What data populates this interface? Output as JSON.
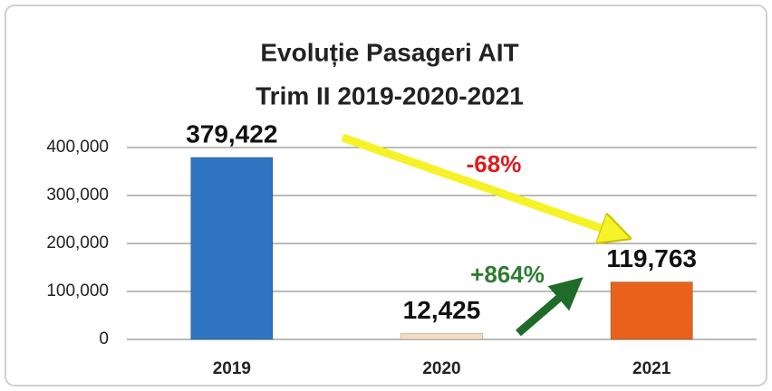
{
  "chart_data": {
    "type": "bar",
    "title": [
      "Evoluție Pasageri AIT",
      "Trim II 2019-2020-2021"
    ],
    "categories": [
      "2019",
      "2020",
      "2021"
    ],
    "values": [
      379422,
      12425,
      119763
    ],
    "value_labels": [
      "379,422",
      "12,425",
      "119,763"
    ],
    "colors": [
      "#2f74c0",
      "#f3dcc1",
      "#e8621b"
    ],
    "ylim": [
      0,
      400000
    ],
    "yticks": [
      0,
      {
        "value": 100000,
        "label": "100,000"
      },
      {
        "value": 200000,
        "label": "200,000"
      },
      {
        "value": 300000,
        "label": "300,000"
      },
      {
        "value": 400000,
        "label": "400,000"
      }
    ],
    "grid": true,
    "annotations": [
      {
        "text": "-68%",
        "color": "#e01b1b"
      },
      {
        "text": "+864%",
        "color": "#2e7d32"
      }
    ]
  }
}
